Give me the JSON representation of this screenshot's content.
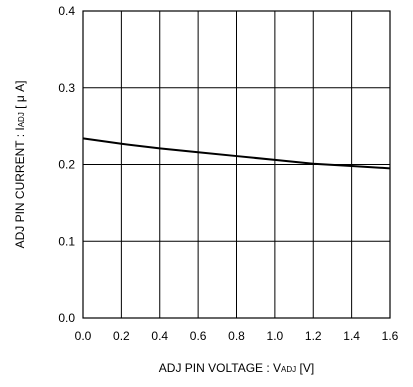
{
  "chart_data": {
    "type": "line",
    "title": "",
    "xlabel": {
      "main": "ADJ PIN VOLTAGE : V",
      "sub": "ADJ",
      "unit": " [V]"
    },
    "ylabel": {
      "main": "ADJ PIN CURRENT : I",
      "sub": "ADJ",
      "unit": " [ μ A]"
    },
    "xlim": [
      0.0,
      1.6
    ],
    "ylim": [
      0.0,
      0.4
    ],
    "xticks": [
      "0.0",
      "0.2",
      "0.4",
      "0.6",
      "0.8",
      "1.0",
      "1.2",
      "1.4",
      "1.6"
    ],
    "yticks": [
      "0.0",
      "0.1",
      "0.2",
      "0.3",
      "0.4"
    ],
    "grid": true,
    "series": [
      {
        "x": [
          0.0,
          0.2,
          0.4,
          0.6,
          0.8,
          1.0,
          1.2,
          1.4,
          1.6
        ],
        "y": [
          0.234,
          0.227,
          0.221,
          0.216,
          0.211,
          0.206,
          0.201,
          0.198,
          0.195
        ]
      }
    ]
  }
}
